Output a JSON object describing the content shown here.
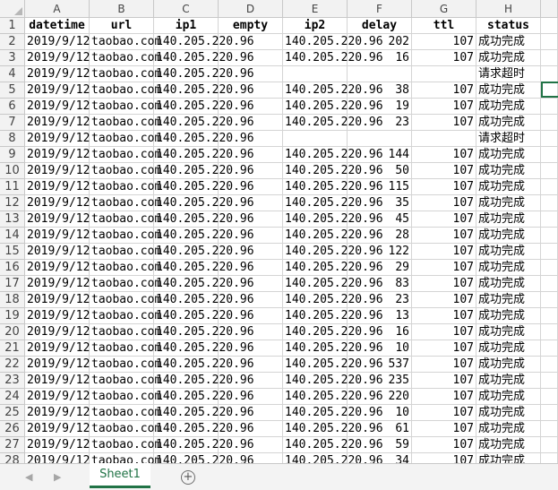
{
  "columns": [
    "A",
    "B",
    "C",
    "D",
    "E",
    "F",
    "G",
    "H"
  ],
  "headers": [
    "datetime",
    "url",
    "ip1",
    "empty",
    "ip2",
    "delay",
    "ttl",
    "status"
  ],
  "rows": [
    {
      "n": "2",
      "datetime": "2019/9/12",
      "url": "taobao.com",
      "ip1": "140.205.220.96",
      "ip2": "140.205.220.96",
      "delay": "202",
      "ttl": "107",
      "status": "成功完成"
    },
    {
      "n": "3",
      "datetime": "2019/9/12",
      "url": "taobao.com",
      "ip1": "140.205.220.96",
      "ip2": "140.205.220.96",
      "delay": "16",
      "ttl": "107",
      "status": "成功完成"
    },
    {
      "n": "4",
      "datetime": "2019/9/12",
      "url": "taobao.com",
      "ip1": "140.205.220.96",
      "ip2": "",
      "delay": "",
      "ttl": "",
      "status": "请求超时"
    },
    {
      "n": "5",
      "datetime": "2019/9/12",
      "url": "taobao.com",
      "ip1": "140.205.220.96",
      "ip2": "140.205.220.96",
      "delay": "38",
      "ttl": "107",
      "status": "成功完成"
    },
    {
      "n": "6",
      "datetime": "2019/9/12",
      "url": "taobao.com",
      "ip1": "140.205.220.96",
      "ip2": "140.205.220.96",
      "delay": "19",
      "ttl": "107",
      "status": "成功完成"
    },
    {
      "n": "7",
      "datetime": "2019/9/12",
      "url": "taobao.com",
      "ip1": "140.205.220.96",
      "ip2": "140.205.220.96",
      "delay": "23",
      "ttl": "107",
      "status": "成功完成"
    },
    {
      "n": "8",
      "datetime": "2019/9/12",
      "url": "taobao.com",
      "ip1": "140.205.220.96",
      "ip2": "",
      "delay": "",
      "ttl": "",
      "status": "请求超时"
    },
    {
      "n": "9",
      "datetime": "2019/9/12",
      "url": "taobao.com",
      "ip1": "140.205.220.96",
      "ip2": "140.205.220.96",
      "delay": "144",
      "ttl": "107",
      "status": "成功完成"
    },
    {
      "n": "10",
      "datetime": "2019/9/12",
      "url": "taobao.com",
      "ip1": "140.205.220.96",
      "ip2": "140.205.220.96",
      "delay": "50",
      "ttl": "107",
      "status": "成功完成"
    },
    {
      "n": "11",
      "datetime": "2019/9/12",
      "url": "taobao.com",
      "ip1": "140.205.220.96",
      "ip2": "140.205.220.96",
      "delay": "115",
      "ttl": "107",
      "status": "成功完成"
    },
    {
      "n": "12",
      "datetime": "2019/9/12",
      "url": "taobao.com",
      "ip1": "140.205.220.96",
      "ip2": "140.205.220.96",
      "delay": "35",
      "ttl": "107",
      "status": "成功完成"
    },
    {
      "n": "13",
      "datetime": "2019/9/12",
      "url": "taobao.com",
      "ip1": "140.205.220.96",
      "ip2": "140.205.220.96",
      "delay": "45",
      "ttl": "107",
      "status": "成功完成"
    },
    {
      "n": "14",
      "datetime": "2019/9/12",
      "url": "taobao.com",
      "ip1": "140.205.220.96",
      "ip2": "140.205.220.96",
      "delay": "28",
      "ttl": "107",
      "status": "成功完成"
    },
    {
      "n": "15",
      "datetime": "2019/9/12",
      "url": "taobao.com",
      "ip1": "140.205.220.96",
      "ip2": "140.205.220.96",
      "delay": "122",
      "ttl": "107",
      "status": "成功完成"
    },
    {
      "n": "16",
      "datetime": "2019/9/12",
      "url": "taobao.com",
      "ip1": "140.205.220.96",
      "ip2": "140.205.220.96",
      "delay": "29",
      "ttl": "107",
      "status": "成功完成"
    },
    {
      "n": "17",
      "datetime": "2019/9/12",
      "url": "taobao.com",
      "ip1": "140.205.220.96",
      "ip2": "140.205.220.96",
      "delay": "83",
      "ttl": "107",
      "status": "成功完成"
    },
    {
      "n": "18",
      "datetime": "2019/9/12",
      "url": "taobao.com",
      "ip1": "140.205.220.96",
      "ip2": "140.205.220.96",
      "delay": "23",
      "ttl": "107",
      "status": "成功完成"
    },
    {
      "n": "19",
      "datetime": "2019/9/12",
      "url": "taobao.com",
      "ip1": "140.205.220.96",
      "ip2": "140.205.220.96",
      "delay": "13",
      "ttl": "107",
      "status": "成功完成"
    },
    {
      "n": "20",
      "datetime": "2019/9/12",
      "url": "taobao.com",
      "ip1": "140.205.220.96",
      "ip2": "140.205.220.96",
      "delay": "16",
      "ttl": "107",
      "status": "成功完成"
    },
    {
      "n": "21",
      "datetime": "2019/9/12",
      "url": "taobao.com",
      "ip1": "140.205.220.96",
      "ip2": "140.205.220.96",
      "delay": "10",
      "ttl": "107",
      "status": "成功完成"
    },
    {
      "n": "22",
      "datetime": "2019/9/12",
      "url": "taobao.com",
      "ip1": "140.205.220.96",
      "ip2": "140.205.220.96",
      "delay": "537",
      "ttl": "107",
      "status": "成功完成"
    },
    {
      "n": "23",
      "datetime": "2019/9/12",
      "url": "taobao.com",
      "ip1": "140.205.220.96",
      "ip2": "140.205.220.96",
      "delay": "235",
      "ttl": "107",
      "status": "成功完成"
    },
    {
      "n": "24",
      "datetime": "2019/9/12",
      "url": "taobao.com",
      "ip1": "140.205.220.96",
      "ip2": "140.205.220.96",
      "delay": "220",
      "ttl": "107",
      "status": "成功完成"
    },
    {
      "n": "25",
      "datetime": "2019/9/12",
      "url": "taobao.com",
      "ip1": "140.205.220.96",
      "ip2": "140.205.220.96",
      "delay": "10",
      "ttl": "107",
      "status": "成功完成"
    },
    {
      "n": "26",
      "datetime": "2019/9/12",
      "url": "taobao.com",
      "ip1": "140.205.220.96",
      "ip2": "140.205.220.96",
      "delay": "61",
      "ttl": "107",
      "status": "成功完成"
    },
    {
      "n": "27",
      "datetime": "2019/9/12",
      "url": "taobao.com",
      "ip1": "140.205.220.96",
      "ip2": "140.205.220.96",
      "delay": "59",
      "ttl": "107",
      "status": "成功完成"
    },
    {
      "n": "28",
      "datetime": "2019/9/12",
      "url": "taobao.com",
      "ip1": "140.205.220.96",
      "ip2": "140.205.220.96",
      "delay": "34",
      "ttl": "107",
      "status": "成功完成"
    }
  ],
  "sheet_tab": "Sheet1",
  "nav_prev": "◀",
  "nav_next": "▶",
  "add_sheet": "+",
  "accent_color": "#217346"
}
